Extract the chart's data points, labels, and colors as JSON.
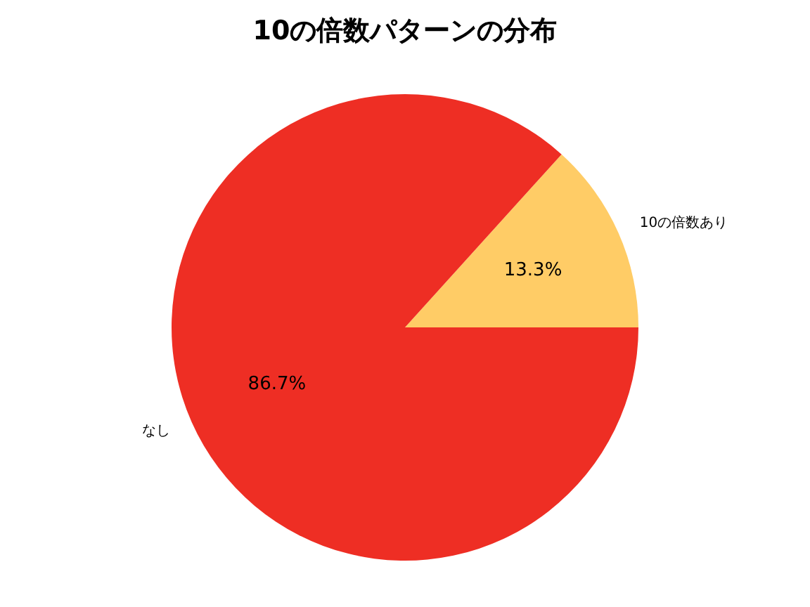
{
  "chart_data": {
    "type": "pie",
    "title": "10の倍数パターンの分布",
    "categories": [
      "10の倍数あり",
      "なし"
    ],
    "values": [
      13.3,
      86.7
    ],
    "colors": [
      "#ffcc66",
      "#ee2e24"
    ],
    "value_labels": [
      "13.3%",
      "86.7%"
    ]
  }
}
